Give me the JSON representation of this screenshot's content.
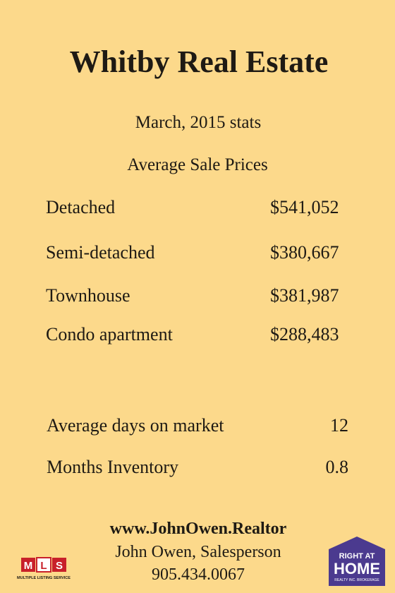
{
  "header": {
    "title": "Whitby Real Estate",
    "subtitle": "March, 2015 stats"
  },
  "prices": {
    "heading": "Average Sale Prices",
    "rows": [
      [
        "Detached",
        "$541,052"
      ],
      [
        "Semi-detached",
        "$380,667"
      ],
      [
        "Townhouse",
        "$381,987"
      ],
      [
        "Condo apartment",
        "$288,483"
      ]
    ]
  },
  "market": {
    "rows": [
      [
        "Average days on market",
        "12"
      ],
      [
        "Months Inventory",
        "0.8"
      ]
    ]
  },
  "footer": {
    "website": "www.JohnOwen.Realtor",
    "name": "John Owen, Salesperson",
    "phone": "905.434.0067"
  },
  "logos": {
    "mls": {
      "letters": [
        "M",
        "L",
        "S"
      ],
      "caption": "MULTIPLE LISTING SERVICE"
    },
    "right_at_home": {
      "top": "RIGHT AT",
      "main": "HOME",
      "caption": "REALTY INC. BROKERAGE"
    }
  }
}
